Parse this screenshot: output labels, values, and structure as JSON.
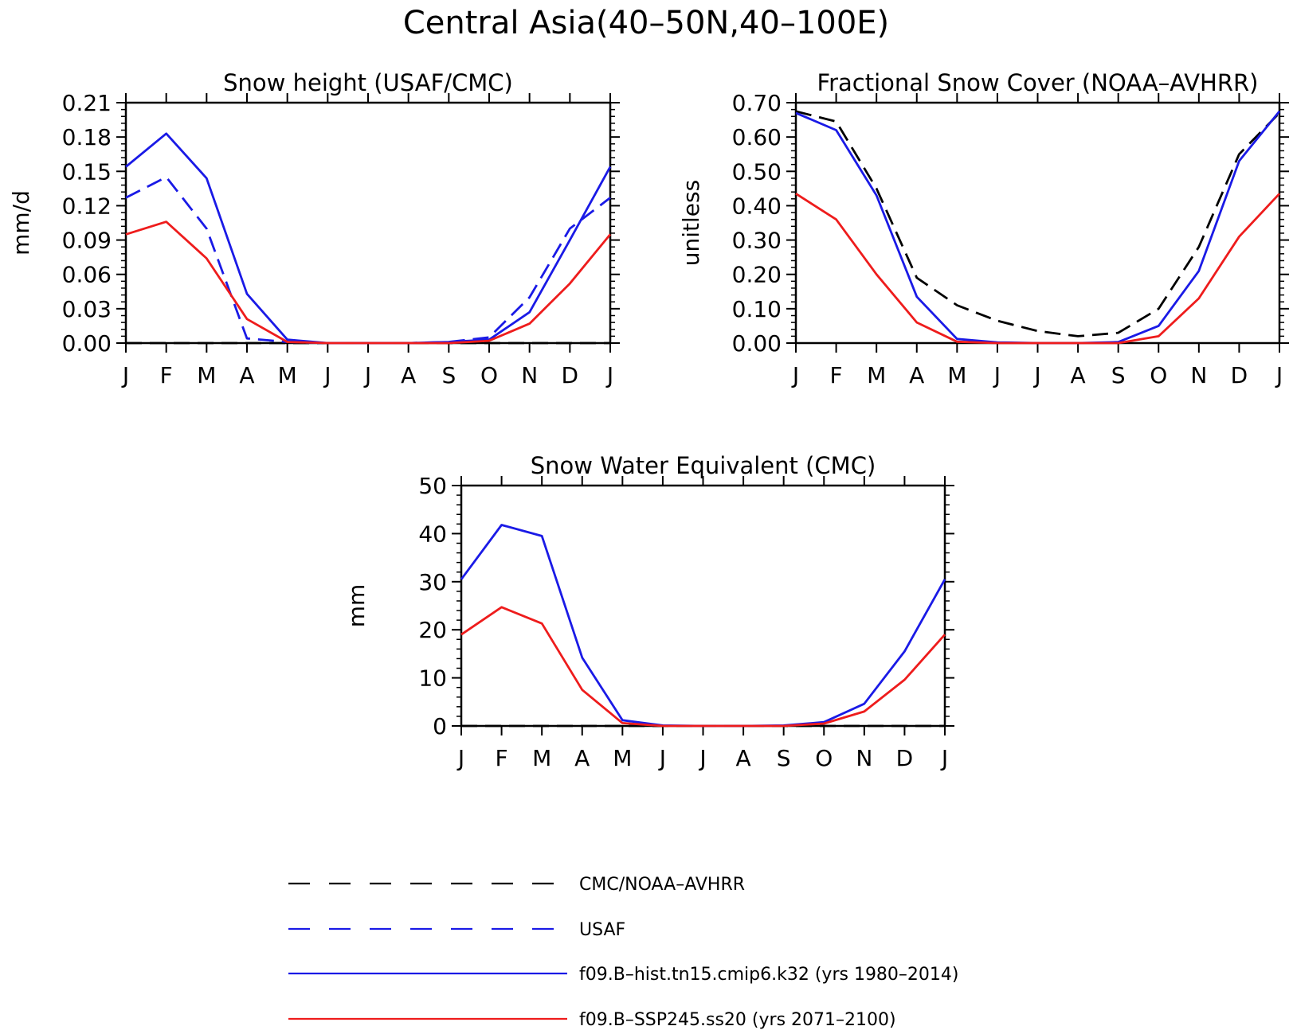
{
  "figure_title": "Central Asia(40–50N,40–100E)",
  "colors": {
    "observed": "#000000",
    "usaf": "#1a1ae6",
    "hist": "#1a1ae6",
    "ssp": "#ee1c1c"
  },
  "legend": [
    {
      "label": "CMC/NOAA–AVHRR",
      "color": "#000000",
      "dash": "long"
    },
    {
      "label": "USAF",
      "color": "#1a1ae6",
      "dash": "long"
    },
    {
      "label": "f09.B–hist.tn15.cmip6.k32 (yrs 1980–2014)",
      "color": "#1a1ae6",
      "dash": "solid"
    },
    {
      "label": "f09.B–SSP245.ss20 (yrs 2071–2100)",
      "color": "#ee1c1c",
      "dash": "solid"
    }
  ],
  "chart_data": [
    {
      "type": "line",
      "title": "Snow height (USAF/CMC)",
      "xlabel": "",
      "ylabel": "mm/d",
      "categories": [
        "J",
        "F",
        "M",
        "A",
        "M",
        "J",
        "J",
        "A",
        "S",
        "O",
        "N",
        "D",
        "J"
      ],
      "ylim": [
        0,
        0.21
      ],
      "yticks": [
        "0.00",
        "0.03",
        "0.06",
        "0.09",
        "0.12",
        "0.15",
        "0.18",
        "0.21"
      ],
      "series": [
        {
          "name": "CMC/NOAA–AVHRR",
          "style": "dash",
          "color": "#000000",
          "values": [
            0,
            0,
            0,
            0,
            0,
            0,
            0,
            0,
            0,
            0,
            0,
            0,
            0
          ]
        },
        {
          "name": "USAF",
          "style": "dash",
          "color": "#1a1ae6",
          "values": [
            0.127,
            0.145,
            0.1,
            0.004,
            0.001,
            0,
            0,
            0,
            0.001,
            0.005,
            0.04,
            0.1,
            0.127
          ]
        },
        {
          "name": "f09.B–hist.tn15.cmip6.k32 (yrs 1980–2014)",
          "style": "solid",
          "color": "#1a1ae6",
          "values": [
            0.154,
            0.183,
            0.144,
            0.043,
            0.003,
            0,
            0,
            0,
            0.001,
            0.003,
            0.027,
            0.09,
            0.154
          ]
        },
        {
          "name": "f09.B–SSP245.ss20 (yrs 2071–2100)",
          "style": "solid",
          "color": "#ee1c1c",
          "values": [
            0.095,
            0.106,
            0.074,
            0.021,
            0.001,
            0,
            0,
            0,
            0,
            0.002,
            0.017,
            0.052,
            0.095
          ]
        }
      ]
    },
    {
      "type": "line",
      "title": "Fractional Snow Cover (NOAA–AVHRR)",
      "xlabel": "",
      "ylabel": "unitless",
      "categories": [
        "J",
        "F",
        "M",
        "A",
        "M",
        "J",
        "J",
        "A",
        "S",
        "O",
        "N",
        "D",
        "J"
      ],
      "ylim": [
        0,
        0.7
      ],
      "yticks": [
        "0.00",
        "0.10",
        "0.20",
        "0.30",
        "0.40",
        "0.50",
        "0.60",
        "0.70"
      ],
      "series": [
        {
          "name": "CMC/NOAA–AVHRR",
          "style": "dash",
          "color": "#000000",
          "values": [
            0.675,
            0.645,
            0.45,
            0.19,
            0.11,
            0.065,
            0.035,
            0.02,
            0.03,
            0.1,
            0.28,
            0.55,
            0.67
          ]
        },
        {
          "name": "f09.B–hist.tn15.cmip6.k32 (yrs 1980–2014)",
          "style": "solid",
          "color": "#1a1ae6",
          "values": [
            0.67,
            0.62,
            0.43,
            0.135,
            0.012,
            0.002,
            0,
            0,
            0.003,
            0.05,
            0.21,
            0.53,
            0.675
          ]
        },
        {
          "name": "f09.B–SSP245.ss20 (yrs 2071–2100)",
          "style": "solid",
          "color": "#ee1c1c",
          "values": [
            0.435,
            0.36,
            0.2,
            0.06,
            0.004,
            0,
            0,
            0,
            0,
            0.02,
            0.13,
            0.31,
            0.435
          ]
        }
      ]
    },
    {
      "type": "line",
      "title": "Snow Water Equivalent (CMC)",
      "xlabel": "",
      "ylabel": "mm",
      "categories": [
        "J",
        "F",
        "M",
        "A",
        "M",
        "J",
        "J",
        "A",
        "S",
        "O",
        "N",
        "D",
        "J"
      ],
      "ylim": [
        0,
        50
      ],
      "yticks": [
        "0",
        "10",
        "20",
        "30",
        "40",
        "50"
      ],
      "series": [
        {
          "name": "CMC/NOAA–AVHRR",
          "style": "dash",
          "color": "#000000",
          "values": [
            0,
            0,
            0,
            0,
            0,
            0,
            0,
            0,
            0,
            0,
            0,
            0,
            0
          ]
        },
        {
          "name": "f09.B–hist.tn15.cmip6.k32 (yrs 1980–2014)",
          "style": "solid",
          "color": "#1a1ae6",
          "values": [
            30.5,
            41.8,
            39.5,
            14.2,
            1.2,
            0.1,
            0,
            0,
            0.1,
            0.8,
            4.6,
            15.5,
            30.5
          ]
        },
        {
          "name": "f09.B–SSP245.ss20 (yrs 2071–2100)",
          "style": "solid",
          "color": "#ee1c1c",
          "values": [
            19,
            24.7,
            21.3,
            7.5,
            0.6,
            0,
            0,
            0,
            0,
            0.5,
            3,
            9.6,
            19
          ]
        }
      ]
    }
  ]
}
